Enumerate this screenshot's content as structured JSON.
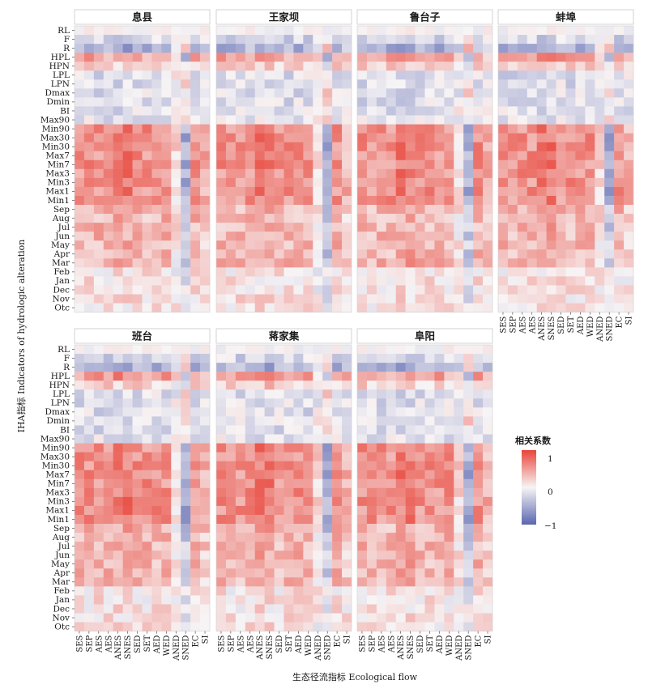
{
  "chart_data": {
    "type": "heatmap",
    "xlabel": "生态径流指标  Ecological flow",
    "ylabel": "IHA指标 Indicators of hydrologic alteration",
    "x_categories": [
      "SES",
      "SEP",
      "AES",
      "AES",
      "ANES",
      "SNES",
      "SED",
      "SET",
      "AED",
      "WED",
      "ANED",
      "SNED",
      "EC",
      "SI"
    ],
    "y_categories": [
      "RL",
      "F",
      "R",
      "HPL",
      "HPN",
      "LPL",
      "LPN",
      "Dmax",
      "Dmin",
      "BI",
      "Max90",
      "Min90",
      "Max30",
      "Min30",
      "Max7",
      "Min7",
      "Max3",
      "Min3",
      "Max1",
      "Min1",
      "Sep",
      "Aug",
      "Jul",
      "Jun",
      "May",
      "Apr",
      "Mar",
      "Feb",
      "Jan",
      "Dec",
      "Nov",
      "Otc"
    ],
    "legend": {
      "title": "相关系数",
      "ticks": [
        "1",
        "0",
        "−1"
      ],
      "range": [
        -1,
        1
      ],
      "low_color": "#5a66b0",
      "mid_color": "#f7f4f5",
      "high_color": "#e8453a"
    },
    "panels": [
      {
        "name": "息县"
      },
      {
        "name": "王家坝"
      },
      {
        "name": "鲁台子"
      },
      {
        "name": "蚌埠"
      },
      {
        "name": "班台"
      },
      {
        "name": "蒋家集"
      },
      {
        "name": "阜阳"
      }
    ]
  }
}
